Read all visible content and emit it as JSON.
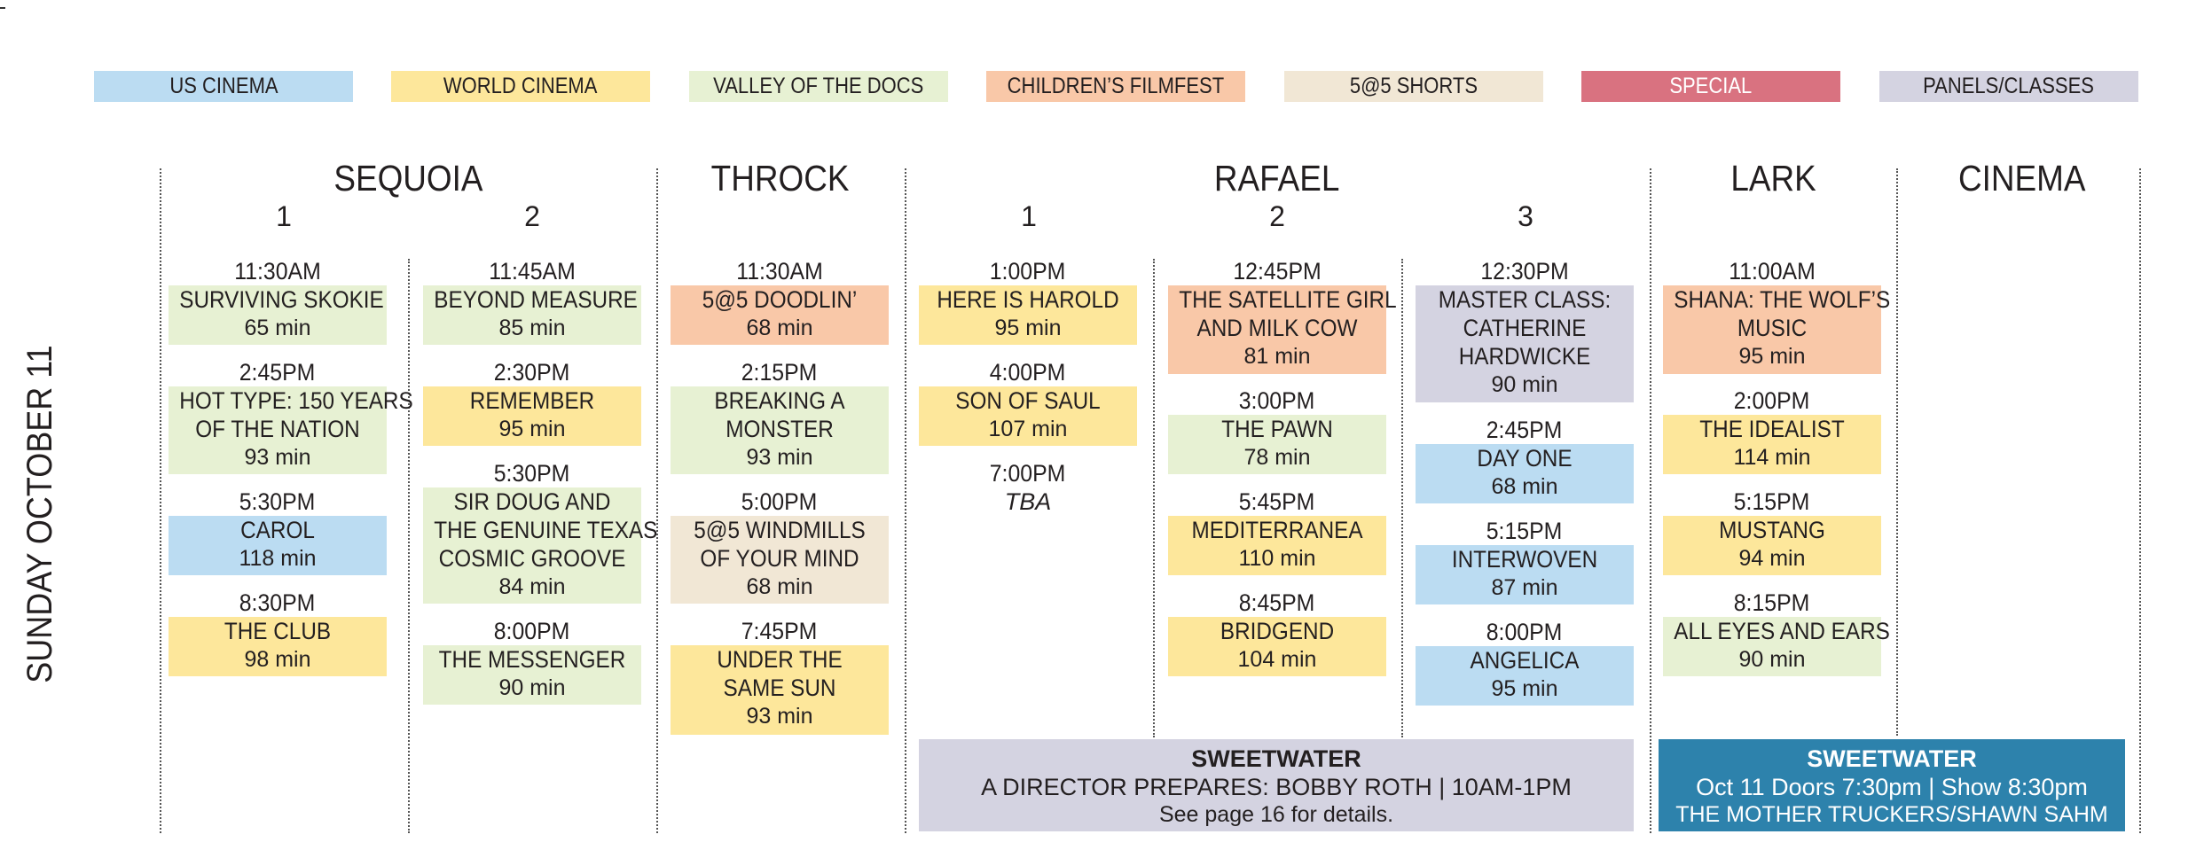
{
  "legend": [
    {
      "label": "US CINEMA",
      "color": "#bbdcf2"
    },
    {
      "label": "WORLD CINEMA",
      "color": "#fde79b"
    },
    {
      "label": "VALLEY OF THE DOCS",
      "color": "#e7f1d3"
    },
    {
      "label": "CHILDREN’S FILMFEST",
      "color": "#f9c8a8"
    },
    {
      "label": "5@5 SHORTS",
      "color": "#f1e7d5"
    },
    {
      "label": "SPECIAL",
      "color": "#d97280"
    },
    {
      "label": "PANELS/CLASSES",
      "color": "#d4d3e1"
    }
  ],
  "date_label": "SUNDAY OCTOBER 11",
  "venues": {
    "sequoia": {
      "name": "SEQUOIA",
      "screens": [
        "1",
        "2"
      ]
    },
    "throck": {
      "name": "THROCK"
    },
    "rafael": {
      "name": "RAFAEL",
      "screens": [
        "1",
        "2",
        "3"
      ]
    },
    "lark": {
      "name": "LARK"
    },
    "cinema": {
      "name": "CINEMA"
    }
  },
  "columns": {
    "sequoia1": [
      {
        "time": "11:30AM",
        "title": [
          "SURVIVING SKOKIE"
        ],
        "duration": "65 min",
        "category": "docs"
      },
      {
        "time": "2:45PM",
        "title": [
          "HOT TYPE: 150 YEARS",
          "OF THE NATION"
        ],
        "duration": "93 min",
        "category": "docs"
      },
      {
        "time": "5:30PM",
        "title": [
          "CAROL"
        ],
        "duration": "118 min",
        "category": "us"
      },
      {
        "time": "8:30PM",
        "title": [
          "THE CLUB"
        ],
        "duration": "98 min",
        "category": "world"
      }
    ],
    "sequoia2": [
      {
        "time": "11:45AM",
        "title": [
          "BEYOND MEASURE"
        ],
        "duration": "85 min",
        "category": "docs"
      },
      {
        "time": "2:30PM",
        "title": [
          "REMEMBER"
        ],
        "duration": "95 min",
        "category": "world"
      },
      {
        "time": "5:30PM",
        "title": [
          "SIR DOUG AND",
          "THE GENUINE TEXAS",
          "COSMIC GROOVE"
        ],
        "duration": "84 min",
        "category": "docs"
      },
      {
        "time": "8:00PM",
        "title": [
          "THE MESSENGER"
        ],
        "duration": "90 min",
        "category": "docs"
      }
    ],
    "throck": [
      {
        "time": "11:30AM",
        "title": [
          "5@5 DOODLIN’"
        ],
        "duration": "68 min",
        "category": "child"
      },
      {
        "time": "2:15PM",
        "title": [
          "BREAKING A",
          "MONSTER"
        ],
        "duration": "93 min",
        "category": "docs"
      },
      {
        "time": "5:00PM",
        "title": [
          "5@5 WINDMILLS",
          "OF YOUR MIND"
        ],
        "duration": "68 min",
        "category": "shorts"
      },
      {
        "time": "7:45PM",
        "title": [
          "UNDER THE",
          "SAME SUN"
        ],
        "duration": "93 min",
        "category": "world"
      }
    ],
    "rafael1": [
      {
        "time": "1:00PM",
        "title": [
          "HERE IS HAROLD"
        ],
        "duration": "95 min",
        "category": "world"
      },
      {
        "time": "4:00PM",
        "title": [
          "SON OF SAUL"
        ],
        "duration": "107 min",
        "category": "world"
      },
      {
        "time": "7:00PM",
        "tba": "TBA"
      }
    ],
    "rafael2": [
      {
        "time": "12:45PM",
        "title": [
          "THE SATELLITE GIRL",
          "AND MILK COW"
        ],
        "duration": "81 min",
        "category": "child"
      },
      {
        "time": "3:00PM",
        "title": [
          "THE PAWN"
        ],
        "duration": "78 min",
        "category": "docs"
      },
      {
        "time": "5:45PM",
        "title": [
          "MEDITERRANEA"
        ],
        "duration": "110 min",
        "category": "world"
      },
      {
        "time": "8:45PM",
        "title": [
          "BRIDGEND"
        ],
        "duration": "104 min",
        "category": "world"
      }
    ],
    "rafael3": [
      {
        "time": "12:30PM",
        "title": [
          "MASTER CLASS:",
          "CATHERINE",
          "HARDWICKE"
        ],
        "duration": "90 min",
        "category": "panels"
      },
      {
        "time": "2:45PM",
        "title": [
          "DAY ONE"
        ],
        "duration": "68 min",
        "category": "us"
      },
      {
        "time": "5:15PM",
        "title": [
          "INTERWOVEN"
        ],
        "duration": "87 min",
        "category": "us"
      },
      {
        "time": "8:00PM",
        "title": [
          "ANGELICA"
        ],
        "duration": "95 min",
        "category": "us"
      }
    ],
    "lark": [
      {
        "time": "11:00AM",
        "title": [
          "SHANA: THE WOLF’S",
          "MUSIC"
        ],
        "duration": "95 min",
        "category": "child"
      },
      {
        "time": "2:00PM",
        "title": [
          "THE IDEALIST"
        ],
        "duration": "114 min",
        "category": "world"
      },
      {
        "time": "5:15PM",
        "title": [
          "MUSTANG"
        ],
        "duration": "94 min",
        "category": "world"
      },
      {
        "time": "8:15PM",
        "title": [
          "ALL EYES AND EARS"
        ],
        "duration": "90 min",
        "category": "docs"
      }
    ]
  },
  "banner_rafael": {
    "venue": "SWEETWATER",
    "line": "A DIRECTOR PREPARES: BOBBY ROTH  |  10AM-1PM",
    "note": "See page 16 for details.",
    "color": "#d4d3e1"
  },
  "banner_lark": {
    "venue": "SWEETWATER",
    "line": "Oct 11  Doors 7:30pm | Show 8:30pm",
    "note": "THE MOTHER TRUCKERS/SHAWN SAHM",
    "color": "#2d82ac"
  }
}
